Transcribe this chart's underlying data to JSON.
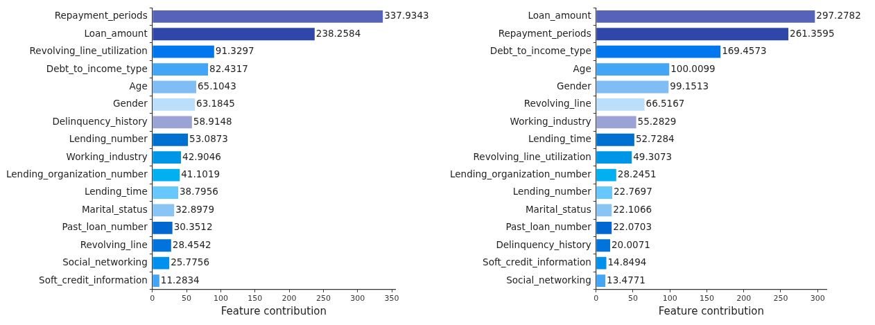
{
  "chart_data": [
    {
      "type": "bar",
      "orientation": "horizontal",
      "xlabel": "Feature contribution",
      "data_labels": true,
      "grid": false,
      "categories": [
        "Repayment_periods",
        "Loan_amount",
        "Revolving_line_utilization",
        "Debt_to_income_type",
        "Age",
        "Gender",
        "Delinquency_history",
        "Lending_number",
        "Working_industry",
        "Lending_organization_number",
        "Lending_time",
        "Marital_status",
        "Past_loan_number",
        "Revolving_line",
        "Social_networking",
        "Soft_credit_information"
      ],
      "values": [
        337.9343,
        238.2584,
        91.3297,
        82.4317,
        65.1043,
        63.1845,
        58.9148,
        53.0873,
        42.9046,
        41.1019,
        38.7956,
        32.8979,
        30.3512,
        28.4542,
        25.7756,
        11.2834
      ],
      "colors": [
        "#5563b8",
        "#2f47a8",
        "#0077ee",
        "#42a5f5",
        "#80bdf5",
        "#bbdefb",
        "#9ba3d6",
        "#0070d0",
        "#0096e8",
        "#00b0f0",
        "#66c8ff",
        "#88c4f4",
        "#0068d0",
        "#0073dd",
        "#0090ee",
        "#42a5f5"
      ],
      "xlim": [
        0,
        355
      ],
      "xticks": [
        0,
        50,
        100,
        150,
        200,
        250,
        300,
        350
      ]
    },
    {
      "type": "bar",
      "orientation": "horizontal",
      "xlabel": "Feature contribution",
      "data_labels": true,
      "grid": false,
      "categories": [
        "Loan_amount",
        "Repayment_periods",
        "Debt_to_income_type",
        "Age",
        "Gender",
        "Revolving_line",
        "Working_industry",
        "Lending_time",
        "Revolving_line_utilization",
        "Lending_organization_number",
        "Lending_number",
        "Marital_status",
        "Past_loan_number",
        "Delinquency_history",
        "Soft_credit_information",
        "Social_networking"
      ],
      "values": [
        297.2782,
        261.3595,
        169.4573,
        100.0099,
        99.1513,
        66.5167,
        55.2829,
        52.7284,
        49.3073,
        28.2451,
        22.7697,
        22.1066,
        22.0703,
        20.0071,
        14.8494,
        13.4771
      ],
      "colors": [
        "#5563b8",
        "#2f47a8",
        "#0077ee",
        "#42a5f5",
        "#80bdf5",
        "#bbdefb",
        "#9ba3d6",
        "#0070d0",
        "#0096e8",
        "#00b0f0",
        "#66c8ff",
        "#88c4f4",
        "#0068d0",
        "#0073dd",
        "#0090ee",
        "#42a5f5"
      ],
      "xlim": [
        0,
        312
      ],
      "xticks": [
        0,
        50,
        100,
        150,
        200,
        250,
        300
      ]
    }
  ]
}
